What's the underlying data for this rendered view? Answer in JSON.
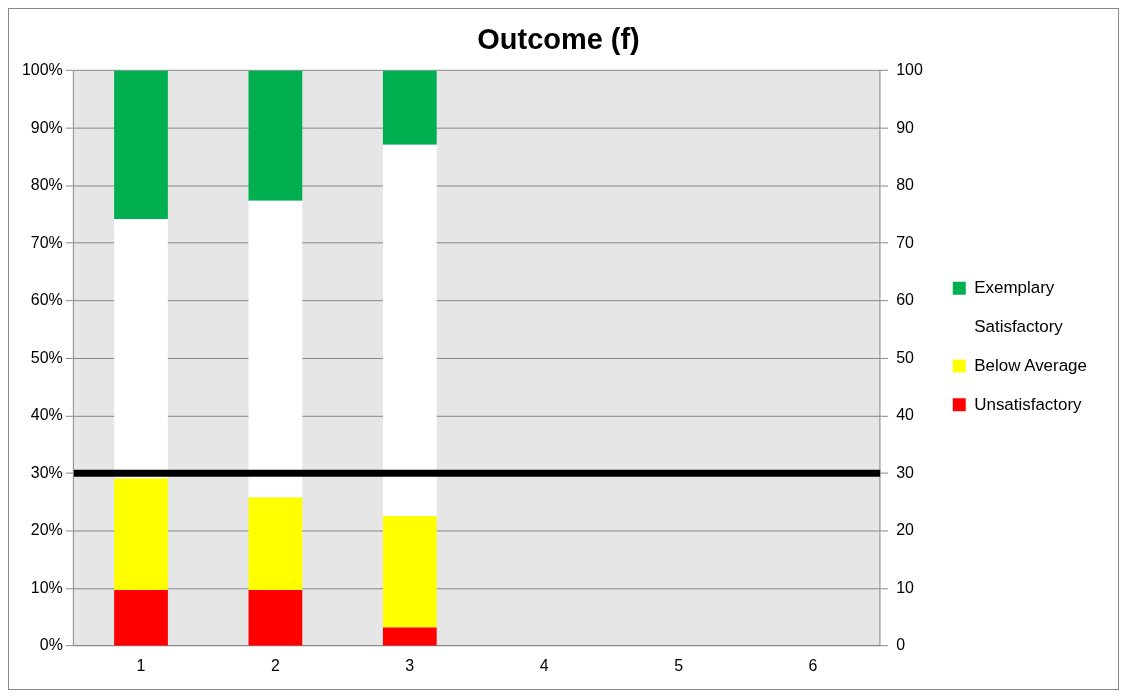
{
  "chart_data": {
    "type": "bar",
    "title": "Outcome (f)",
    "stacked": true,
    "categories": [
      "1",
      "2",
      "3",
      "4",
      "5",
      "6"
    ],
    "series": [
      {
        "name": "Unsatisfactory",
        "color": "#ff0000",
        "values": [
          9.7,
          9.7,
          3.2,
          null,
          null,
          null
        ]
      },
      {
        "name": "Below Average",
        "color": "#ffff00",
        "values": [
          19.4,
          16.1,
          19.4,
          null,
          null,
          null
        ]
      },
      {
        "name": "Satisfactory",
        "color": "#ffffff",
        "values": [
          45.1,
          51.6,
          64.5,
          null,
          null,
          null
        ]
      },
      {
        "name": "Exemplary",
        "color": "#00b050",
        "values": [
          25.8,
          22.6,
          12.9,
          null,
          null,
          null
        ]
      }
    ],
    "ylim": [
      0,
      100
    ],
    "yticks": [
      {
        "value": 0,
        "label": "0%"
      },
      {
        "value": 10,
        "label": "10%"
      },
      {
        "value": 20,
        "label": "20%"
      },
      {
        "value": 30,
        "label": "30%"
      },
      {
        "value": 40,
        "label": "40%"
      },
      {
        "value": 50,
        "label": "50%"
      },
      {
        "value": 60,
        "label": "60%"
      },
      {
        "value": 70,
        "label": "70%"
      },
      {
        "value": 80,
        "label": "80%"
      },
      {
        "value": 90,
        "label": "90%"
      },
      {
        "value": 100,
        "label": "100%"
      }
    ],
    "y2lim": [
      0,
      100
    ],
    "y2ticks": [
      0,
      10,
      20,
      30,
      40,
      50,
      60,
      70,
      80,
      90,
      100
    ],
    "ref_lines": [
      {
        "axis": "y",
        "value": 30,
        "color": "#000000"
      }
    ],
    "grid": "y",
    "legend": "right"
  }
}
